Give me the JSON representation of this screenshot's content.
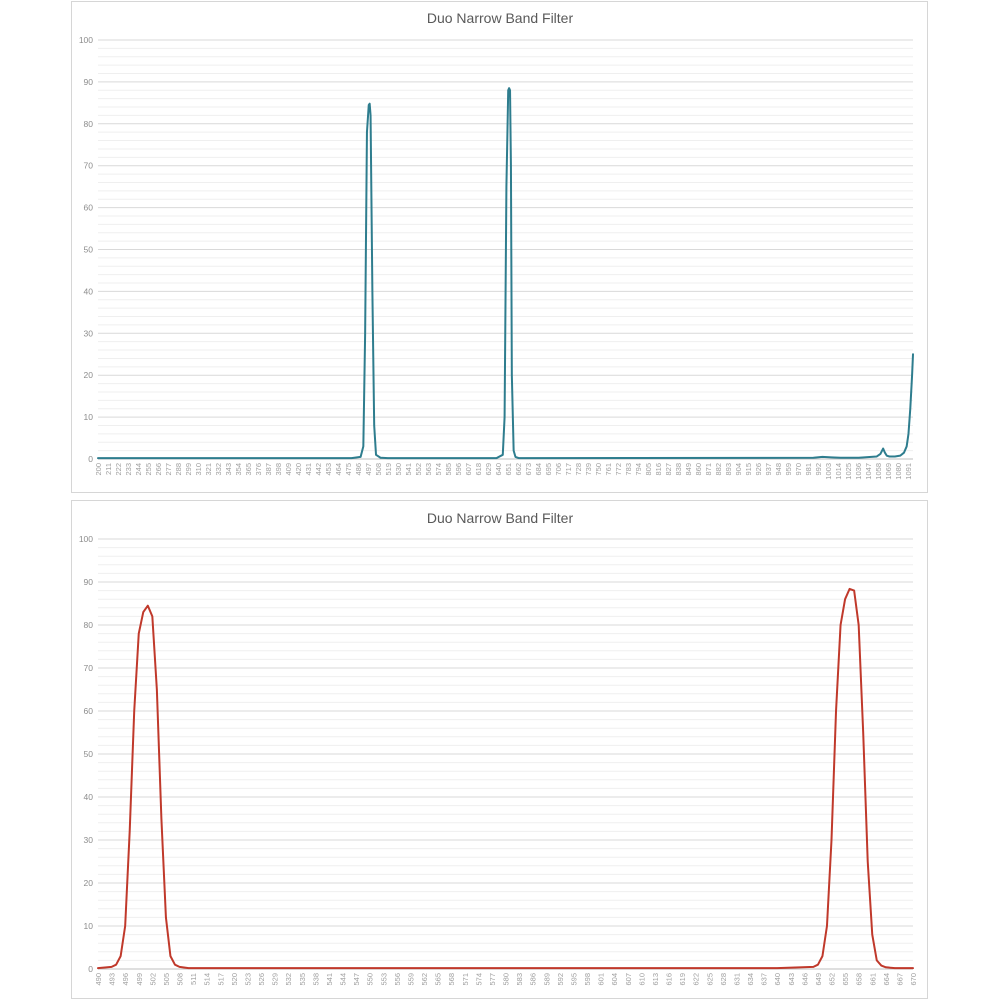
{
  "chart_data": [
    {
      "type": "line",
      "title": "Duo Narrow Band Filter",
      "xlabel": "",
      "ylabel": "",
      "xlim": [
        200,
        1100
      ],
      "ylim": [
        0,
        100
      ],
      "yticks": [
        0,
        10,
        20,
        30,
        40,
        50,
        60,
        70,
        80,
        90,
        100
      ],
      "grid": "on",
      "legend": "none",
      "color": "#2e7d8e",
      "x_tick_labels": [
        "200",
        "211",
        "222",
        "233",
        "244",
        "255",
        "266",
        "277",
        "288",
        "299",
        "310",
        "321",
        "332",
        "343",
        "354",
        "365",
        "376",
        "387",
        "398",
        "409",
        "420",
        "431",
        "442",
        "453",
        "464",
        "475",
        "486",
        "497",
        "508",
        "519",
        "530",
        "541",
        "552",
        "563",
        "574",
        "585",
        "596",
        "607",
        "618",
        "629",
        "640",
        "651",
        "662",
        "673",
        "684",
        "695",
        "706",
        "717",
        "728",
        "739",
        "750",
        "761",
        "772",
        "783",
        "794",
        "805",
        "816",
        "827",
        "838",
        "849",
        "860",
        "871",
        "882",
        "893",
        "904",
        "915",
        "926",
        "937",
        "948",
        "959",
        "970",
        "981",
        "992",
        "1003",
        "1014",
        "1025",
        "1036",
        "1047",
        "1058",
        "1069",
        "1080",
        "1091"
      ],
      "series": [
        {
          "x": [
            200,
            480,
            490,
            493,
            495,
            497,
            499,
            500,
            501,
            503,
            505,
            507,
            512,
            520,
            640,
            647,
            649,
            651,
            653,
            654,
            655,
            656,
            657,
            659,
            661,
            665,
            670,
            990,
            1000,
            1010,
            1020,
            1040,
            1060,
            1064,
            1067,
            1069,
            1071,
            1074,
            1080,
            1086,
            1090,
            1093,
            1095,
            1097,
            1099,
            1100
          ],
          "values": [
            0.2,
            0.2,
            0.5,
            3,
            30,
            78,
            84.5,
            84.8,
            82,
            40,
            8,
            1,
            0.3,
            0.2,
            0.2,
            1,
            10,
            65,
            88,
            88.5,
            88,
            70,
            20,
            2,
            0.5,
            0.2,
            0.2,
            0.3,
            0.5,
            0.4,
            0.3,
            0.3,
            0.6,
            1.2,
            2.5,
            1.5,
            0.8,
            0.6,
            0.6,
            0.8,
            1.5,
            3,
            6,
            12,
            20,
            25
          ]
        }
      ]
    },
    {
      "type": "line",
      "title": "Duo Narrow Band Filter",
      "xlabel": "",
      "ylabel": "",
      "xlim": [
        490,
        670
      ],
      "ylim": [
        0,
        100
      ],
      "yticks": [
        0,
        10,
        20,
        30,
        40,
        50,
        60,
        70,
        80,
        90,
        100
      ],
      "grid": "on",
      "legend": "none",
      "color": "#c0392b",
      "x_tick_labels": [
        "490",
        "493",
        "496",
        "499",
        "502",
        "505",
        "508",
        "511",
        "514",
        "517",
        "520",
        "523",
        "526",
        "529",
        "532",
        "535",
        "538",
        "541",
        "544",
        "547",
        "550",
        "553",
        "556",
        "559",
        "562",
        "565",
        "568",
        "571",
        "574",
        "577",
        "580",
        "583",
        "586",
        "589",
        "592",
        "595",
        "598",
        "601",
        "604",
        "607",
        "610",
        "613",
        "616",
        "619",
        "622",
        "625",
        "628",
        "631",
        "634",
        "637",
        "640",
        "643",
        "646",
        "649",
        "652",
        "655",
        "658",
        "661",
        "664",
        "667",
        "670"
      ],
      "series": [
        {
          "x": [
            490,
            493,
            494,
            495,
            496,
            497,
            498,
            499,
            500,
            501,
            502,
            503,
            504,
            505,
            506,
            507,
            508,
            510,
            515,
            640,
            648,
            649,
            650,
            651,
            652,
            653,
            654,
            655,
            656,
            657,
            658,
            659,
            660,
            661,
            662,
            663,
            664,
            666,
            670
          ],
          "values": [
            0.2,
            0.5,
            1,
            3,
            10,
            32,
            60,
            78,
            83,
            84.5,
            82,
            65,
            35,
            12,
            3,
            1,
            0.5,
            0.2,
            0.2,
            0.2,
            0.5,
            1,
            3,
            10,
            30,
            60,
            80,
            86,
            88.4,
            88,
            80,
            55,
            25,
            8,
            2,
            0.8,
            0.4,
            0.2,
            0.2
          ]
        }
      ]
    }
  ]
}
